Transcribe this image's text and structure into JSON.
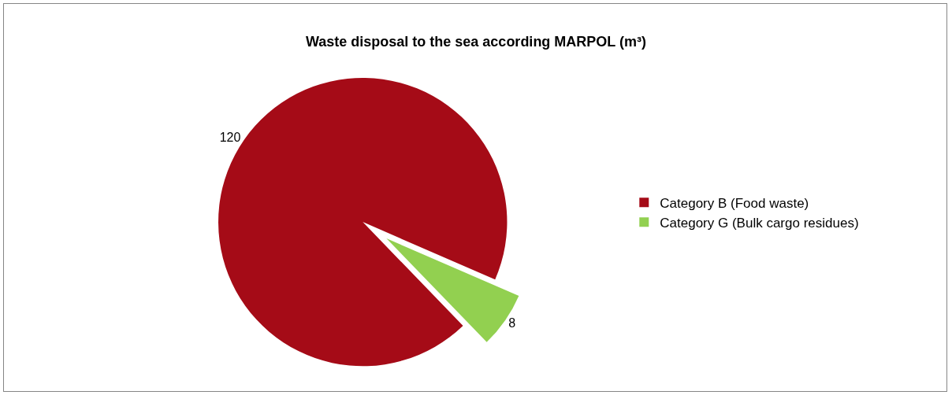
{
  "chart_data": {
    "type": "pie",
    "title": "Waste disposal to the sea according MARPOL (m³)",
    "categories": [
      "Category B (Food waste)",
      "Category G (Bulk cargo residues)"
    ],
    "values": [
      120,
      8
    ],
    "colors": [
      "#a50b17",
      "#92d050"
    ],
    "data_labels": true,
    "legend": "right"
  }
}
